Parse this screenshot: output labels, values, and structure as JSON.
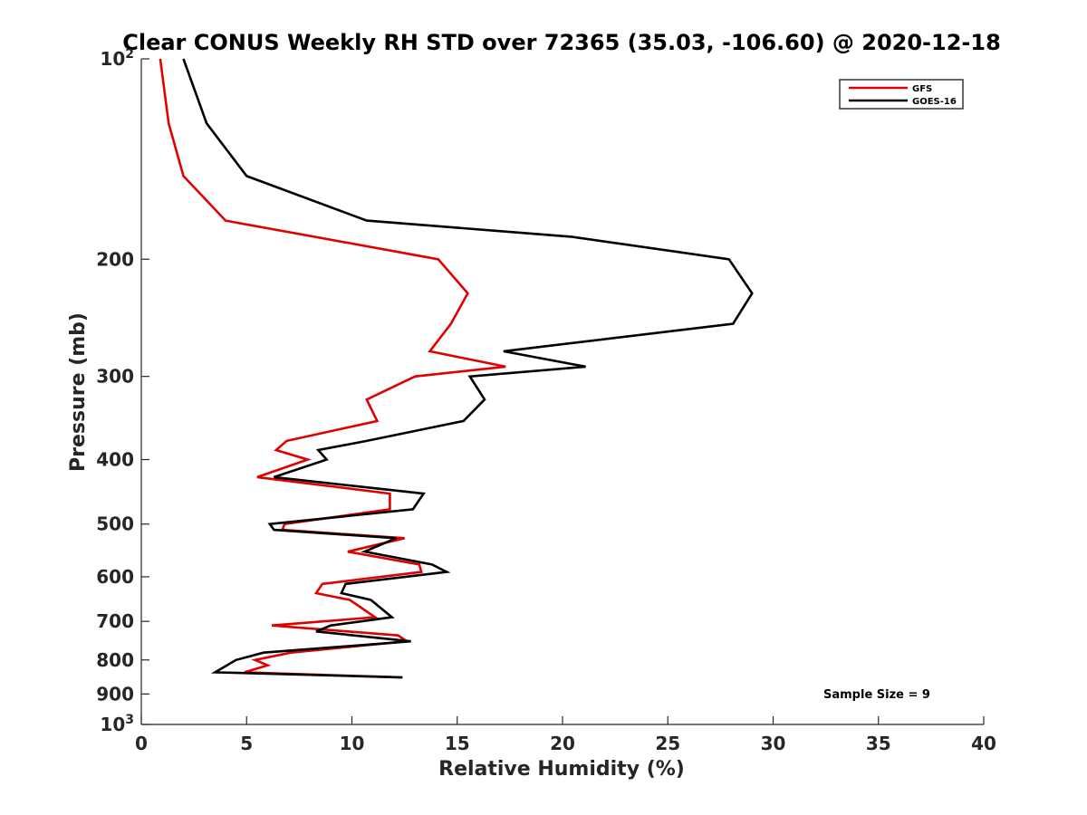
{
  "chart_data": {
    "type": "line",
    "title": "Clear CONUS Weekly RH STD over 72365 (35.03, -106.60) @ 2020-12-18",
    "xlabel": "Relative Humidity (%)",
    "ylabel": "Pressure (mb)",
    "xlim": [
      0,
      40
    ],
    "ylim": [
      100,
      1000
    ],
    "y_scale": "log",
    "y_reversed": true,
    "grid": false,
    "legend_position": "top-right",
    "x_ticks": [
      0,
      5,
      10,
      15,
      20,
      25,
      30,
      35,
      40
    ],
    "y_ticks": [
      {
        "value": 100,
        "base": "10",
        "exp": "2"
      },
      {
        "value": 200,
        "label": "200"
      },
      {
        "value": 300,
        "label": "300"
      },
      {
        "value": 400,
        "label": "400"
      },
      {
        "value": 500,
        "label": "500"
      },
      {
        "value": 600,
        "label": "600"
      },
      {
        "value": 700,
        "label": "700"
      },
      {
        "value": 800,
        "label": "800"
      },
      {
        "value": 900,
        "label": "900"
      },
      {
        "value": 1000,
        "base": "10",
        "exp": "3"
      }
    ],
    "annotation": "Sample Size = 9",
    "series": [
      {
        "name": "GFS",
        "color": "#e00000",
        "points": [
          [
            0.9,
            100
          ],
          [
            1.3,
            125
          ],
          [
            2.0,
            150
          ],
          [
            4.0,
            175
          ],
          [
            14.1,
            200
          ],
          [
            15.5,
            225
          ],
          [
            14.7,
            250
          ],
          [
            13.7,
            275
          ],
          [
            17.3,
            290
          ],
          [
            13.0,
            300
          ],
          [
            10.7,
            325
          ],
          [
            11.2,
            350
          ],
          [
            6.9,
            375
          ],
          [
            6.4,
            387
          ],
          [
            7.9,
            400
          ],
          [
            5.5,
            425
          ],
          [
            11.8,
            450
          ],
          [
            11.8,
            475
          ],
          [
            6.8,
            500
          ],
          [
            6.7,
            510
          ],
          [
            12.5,
            525
          ],
          [
            9.8,
            550
          ],
          [
            13.2,
            575
          ],
          [
            13.3,
            590
          ],
          [
            8.6,
            615
          ],
          [
            8.3,
            635
          ],
          [
            9.9,
            650
          ],
          [
            11.1,
            690
          ],
          [
            6.2,
            710
          ],
          [
            12.2,
            735
          ],
          [
            12.6,
            750
          ],
          [
            7.1,
            780
          ],
          [
            5.4,
            800
          ],
          [
            6.0,
            815
          ],
          [
            4.9,
            835
          ],
          [
            12.4,
            850
          ]
        ]
      },
      {
        "name": "GOES-16",
        "color": "#000000",
        "points": [
          [
            2.0,
            100
          ],
          [
            3.1,
            125
          ],
          [
            5.0,
            150
          ],
          [
            10.7,
            175
          ],
          [
            20.4,
            185
          ],
          [
            27.9,
            200
          ],
          [
            29.0,
            225
          ],
          [
            28.1,
            250
          ],
          [
            17.2,
            275
          ],
          [
            21.1,
            290
          ],
          [
            15.6,
            300
          ],
          [
            16.3,
            325
          ],
          [
            15.3,
            350
          ],
          [
            10.7,
            375
          ],
          [
            8.4,
            387
          ],
          [
            8.8,
            400
          ],
          [
            6.3,
            425
          ],
          [
            13.4,
            450
          ],
          [
            12.9,
            475
          ],
          [
            6.1,
            500
          ],
          [
            6.3,
            510
          ],
          [
            12.1,
            525
          ],
          [
            10.6,
            550
          ],
          [
            13.8,
            575
          ],
          [
            14.5,
            590
          ],
          [
            9.7,
            615
          ],
          [
            9.5,
            635
          ],
          [
            10.9,
            650
          ],
          [
            11.9,
            690
          ],
          [
            9.0,
            710
          ],
          [
            8.3,
            725
          ],
          [
            12.8,
            750
          ],
          [
            5.8,
            780
          ],
          [
            4.5,
            800
          ],
          [
            3.5,
            835
          ],
          [
            12.4,
            850
          ]
        ]
      }
    ]
  }
}
